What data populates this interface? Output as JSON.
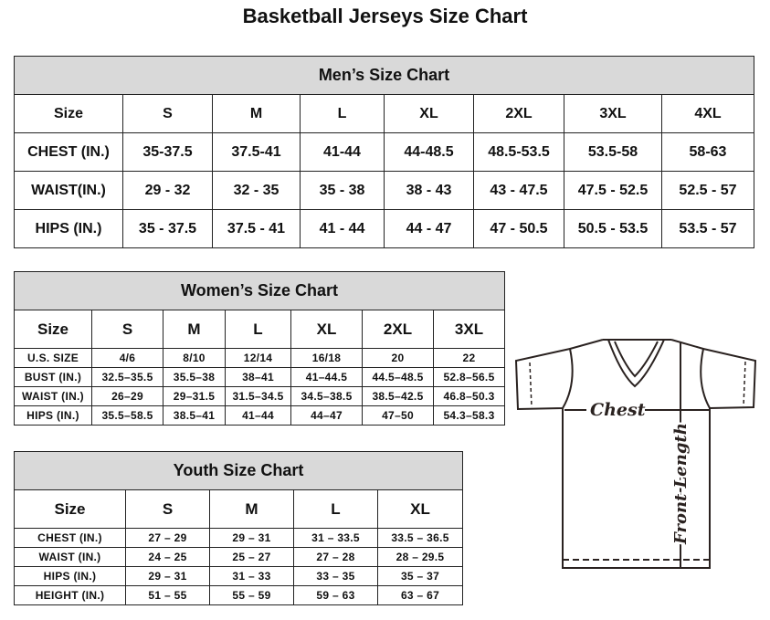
{
  "title": "Basketball Jerseys Size Chart",
  "mens": {
    "caption": "Men’s Size Chart",
    "headers": [
      "Size",
      "S",
      "M",
      "L",
      "XL",
      "2XL",
      "3XL",
      "4XL"
    ],
    "rows": [
      [
        "CHEST (IN.)",
        "35-37.5",
        "37.5-41",
        "41-44",
        "44-48.5",
        "48.5-53.5",
        "53.5-58",
        "58-63"
      ],
      [
        "WAIST(IN.)",
        "29 - 32",
        "32 - 35",
        "35 - 38",
        "38 - 43",
        "43 - 47.5",
        "47.5 - 52.5",
        "52.5 - 57"
      ],
      [
        "HIPS (IN.)",
        "35 - 37.5",
        "37.5 - 41",
        "41 - 44",
        "44 - 47",
        "47 - 50.5",
        "50.5 - 53.5",
        "53.5 - 57"
      ]
    ]
  },
  "womens": {
    "caption": "Women’s Size Chart",
    "headers": [
      "Size",
      "S",
      "M",
      "L",
      "XL",
      "2XL",
      "3XL"
    ],
    "rows": [
      [
        "U.S. SIZE",
        "4/6",
        "8/10",
        "12/14",
        "16/18",
        "20",
        "22"
      ],
      [
        "BUST (IN.)",
        "32.5–35.5",
        "35.5–38",
        "38–41",
        "41–44.5",
        "44.5–48.5",
        "52.8–56.5"
      ],
      [
        "WAIST (IN.)",
        "26–29",
        "29–31.5",
        "31.5–34.5",
        "34.5–38.5",
        "38.5–42.5",
        "46.8–50.3"
      ],
      [
        "HIPS (IN.)",
        "35.5–58.5",
        "38.5–41",
        "41–44",
        "44–47",
        "47–50",
        "54.3–58.3"
      ]
    ]
  },
  "youth": {
    "caption": "Youth Size Chart",
    "headers": [
      "Size",
      "S",
      "M",
      "L",
      "XL"
    ],
    "rows": [
      [
        "CHEST (IN.)",
        "27 – 29",
        "29 – 31",
        "31 – 33.5",
        "33.5 – 36.5"
      ],
      [
        "WAIST (IN.)",
        "24 – 25",
        "25 – 27",
        "27 – 28",
        "28 – 29.5"
      ],
      [
        "HIPS (IN.)",
        "29 – 31",
        "31 – 33",
        "33 – 35",
        "35 – 37"
      ],
      [
        "HEIGHT (IN.)",
        "51 – 55",
        "55 – 59",
        "59 – 63",
        "63 – 67"
      ]
    ]
  },
  "diagram": {
    "chest_label": "Chest",
    "length_label": "Front Length"
  },
  "colors": {
    "caption_bg": "#d9d9d9",
    "border": "#222222"
  }
}
